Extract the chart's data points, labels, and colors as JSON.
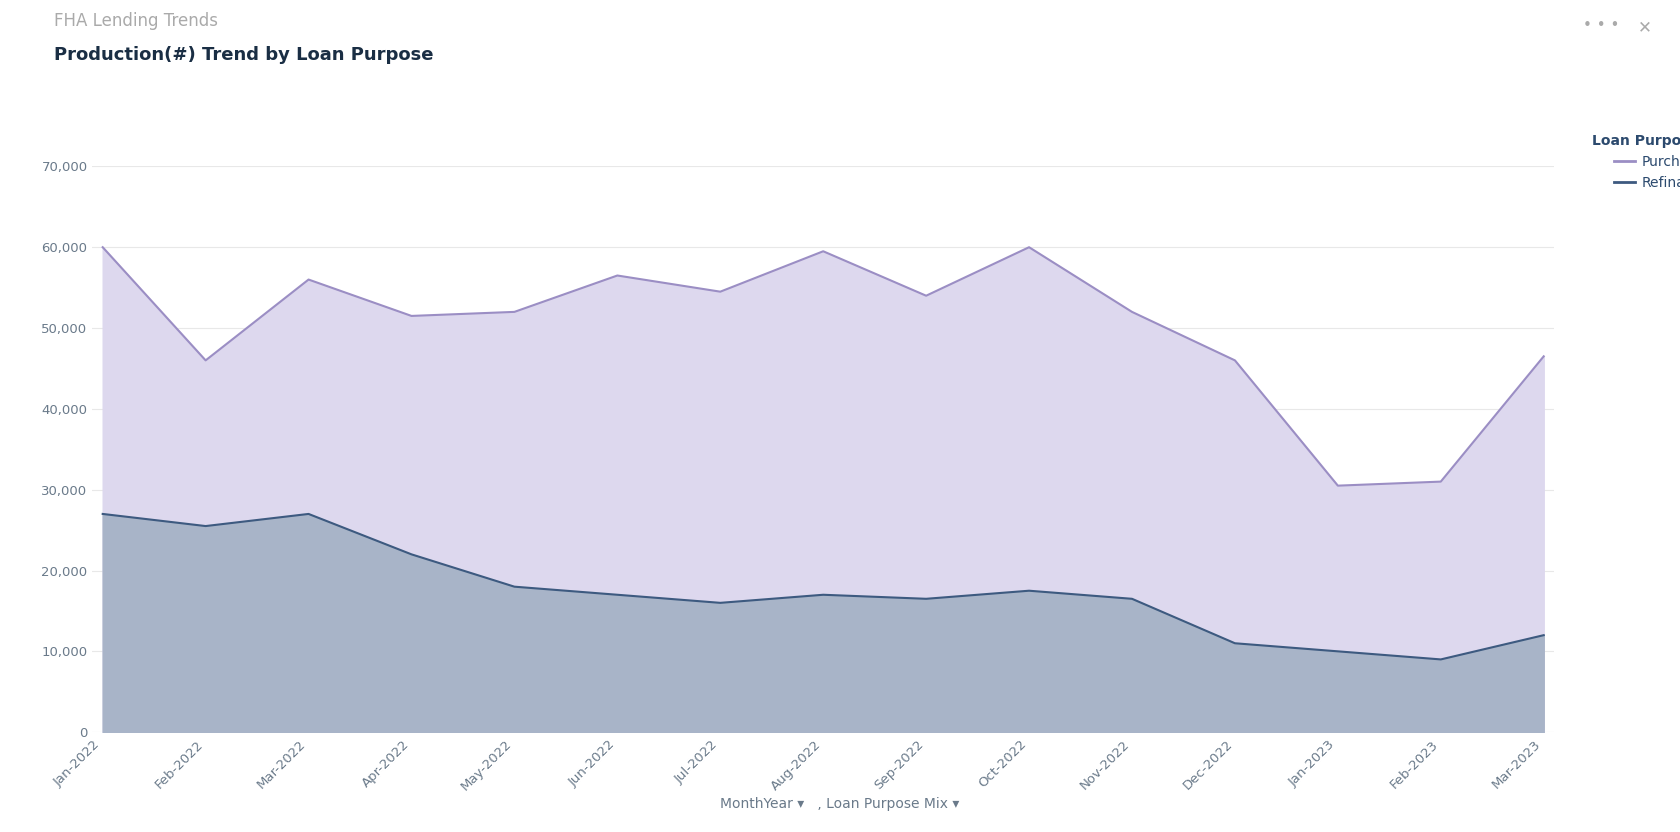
{
  "title_main": "FHA Lending Trends",
  "title_sub": "Production(#) Trend by Loan Purpose",
  "legend_title": "Loan Purpose Mix",
  "legend_items": [
    "Purchase",
    "Refinance"
  ],
  "months": [
    "Jan-2022",
    "Feb-2022",
    "Mar-2022",
    "Apr-2022",
    "May-2022",
    "Jun-2022",
    "Jul-2022",
    "Aug-2022",
    "Sep-2022",
    "Oct-2022",
    "Nov-2022",
    "Dec-2022",
    "Jan-2023",
    "Feb-2023",
    "Mar-2023"
  ],
  "purchase": [
    60000,
    46000,
    56000,
    51500,
    52000,
    56500,
    54500,
    59500,
    54000,
    60000,
    52000,
    46000,
    30500,
    31000,
    46500
  ],
  "refinance": [
    27000,
    25500,
    27000,
    22000,
    18000,
    17000,
    16000,
    17000,
    16500,
    17500,
    16500,
    11000,
    10000,
    9000,
    12000
  ],
  "purchase_line_color": "#9b8ec4",
  "purchase_fill_color": "#ddd8ee",
  "refinance_line_color": "#3d5a80",
  "refinance_fill_color": "#a8b4c8",
  "background_color": "#ffffff",
  "ylim": [
    0,
    70000
  ],
  "yticks": [
    0,
    10000,
    20000,
    30000,
    40000,
    50000,
    60000,
    70000
  ],
  "axis_color": "#6a7a8a",
  "title_main_color": "#aaaaaa",
  "title_sub_color": "#1a2e44",
  "legend_title_color": "#2c4a6e",
  "legend_text_color": "#2c4a6e",
  "footer_text": "MonthYear ▾   , Loan Purpose Mix ▾",
  "grid_color": "#e8e8e8"
}
